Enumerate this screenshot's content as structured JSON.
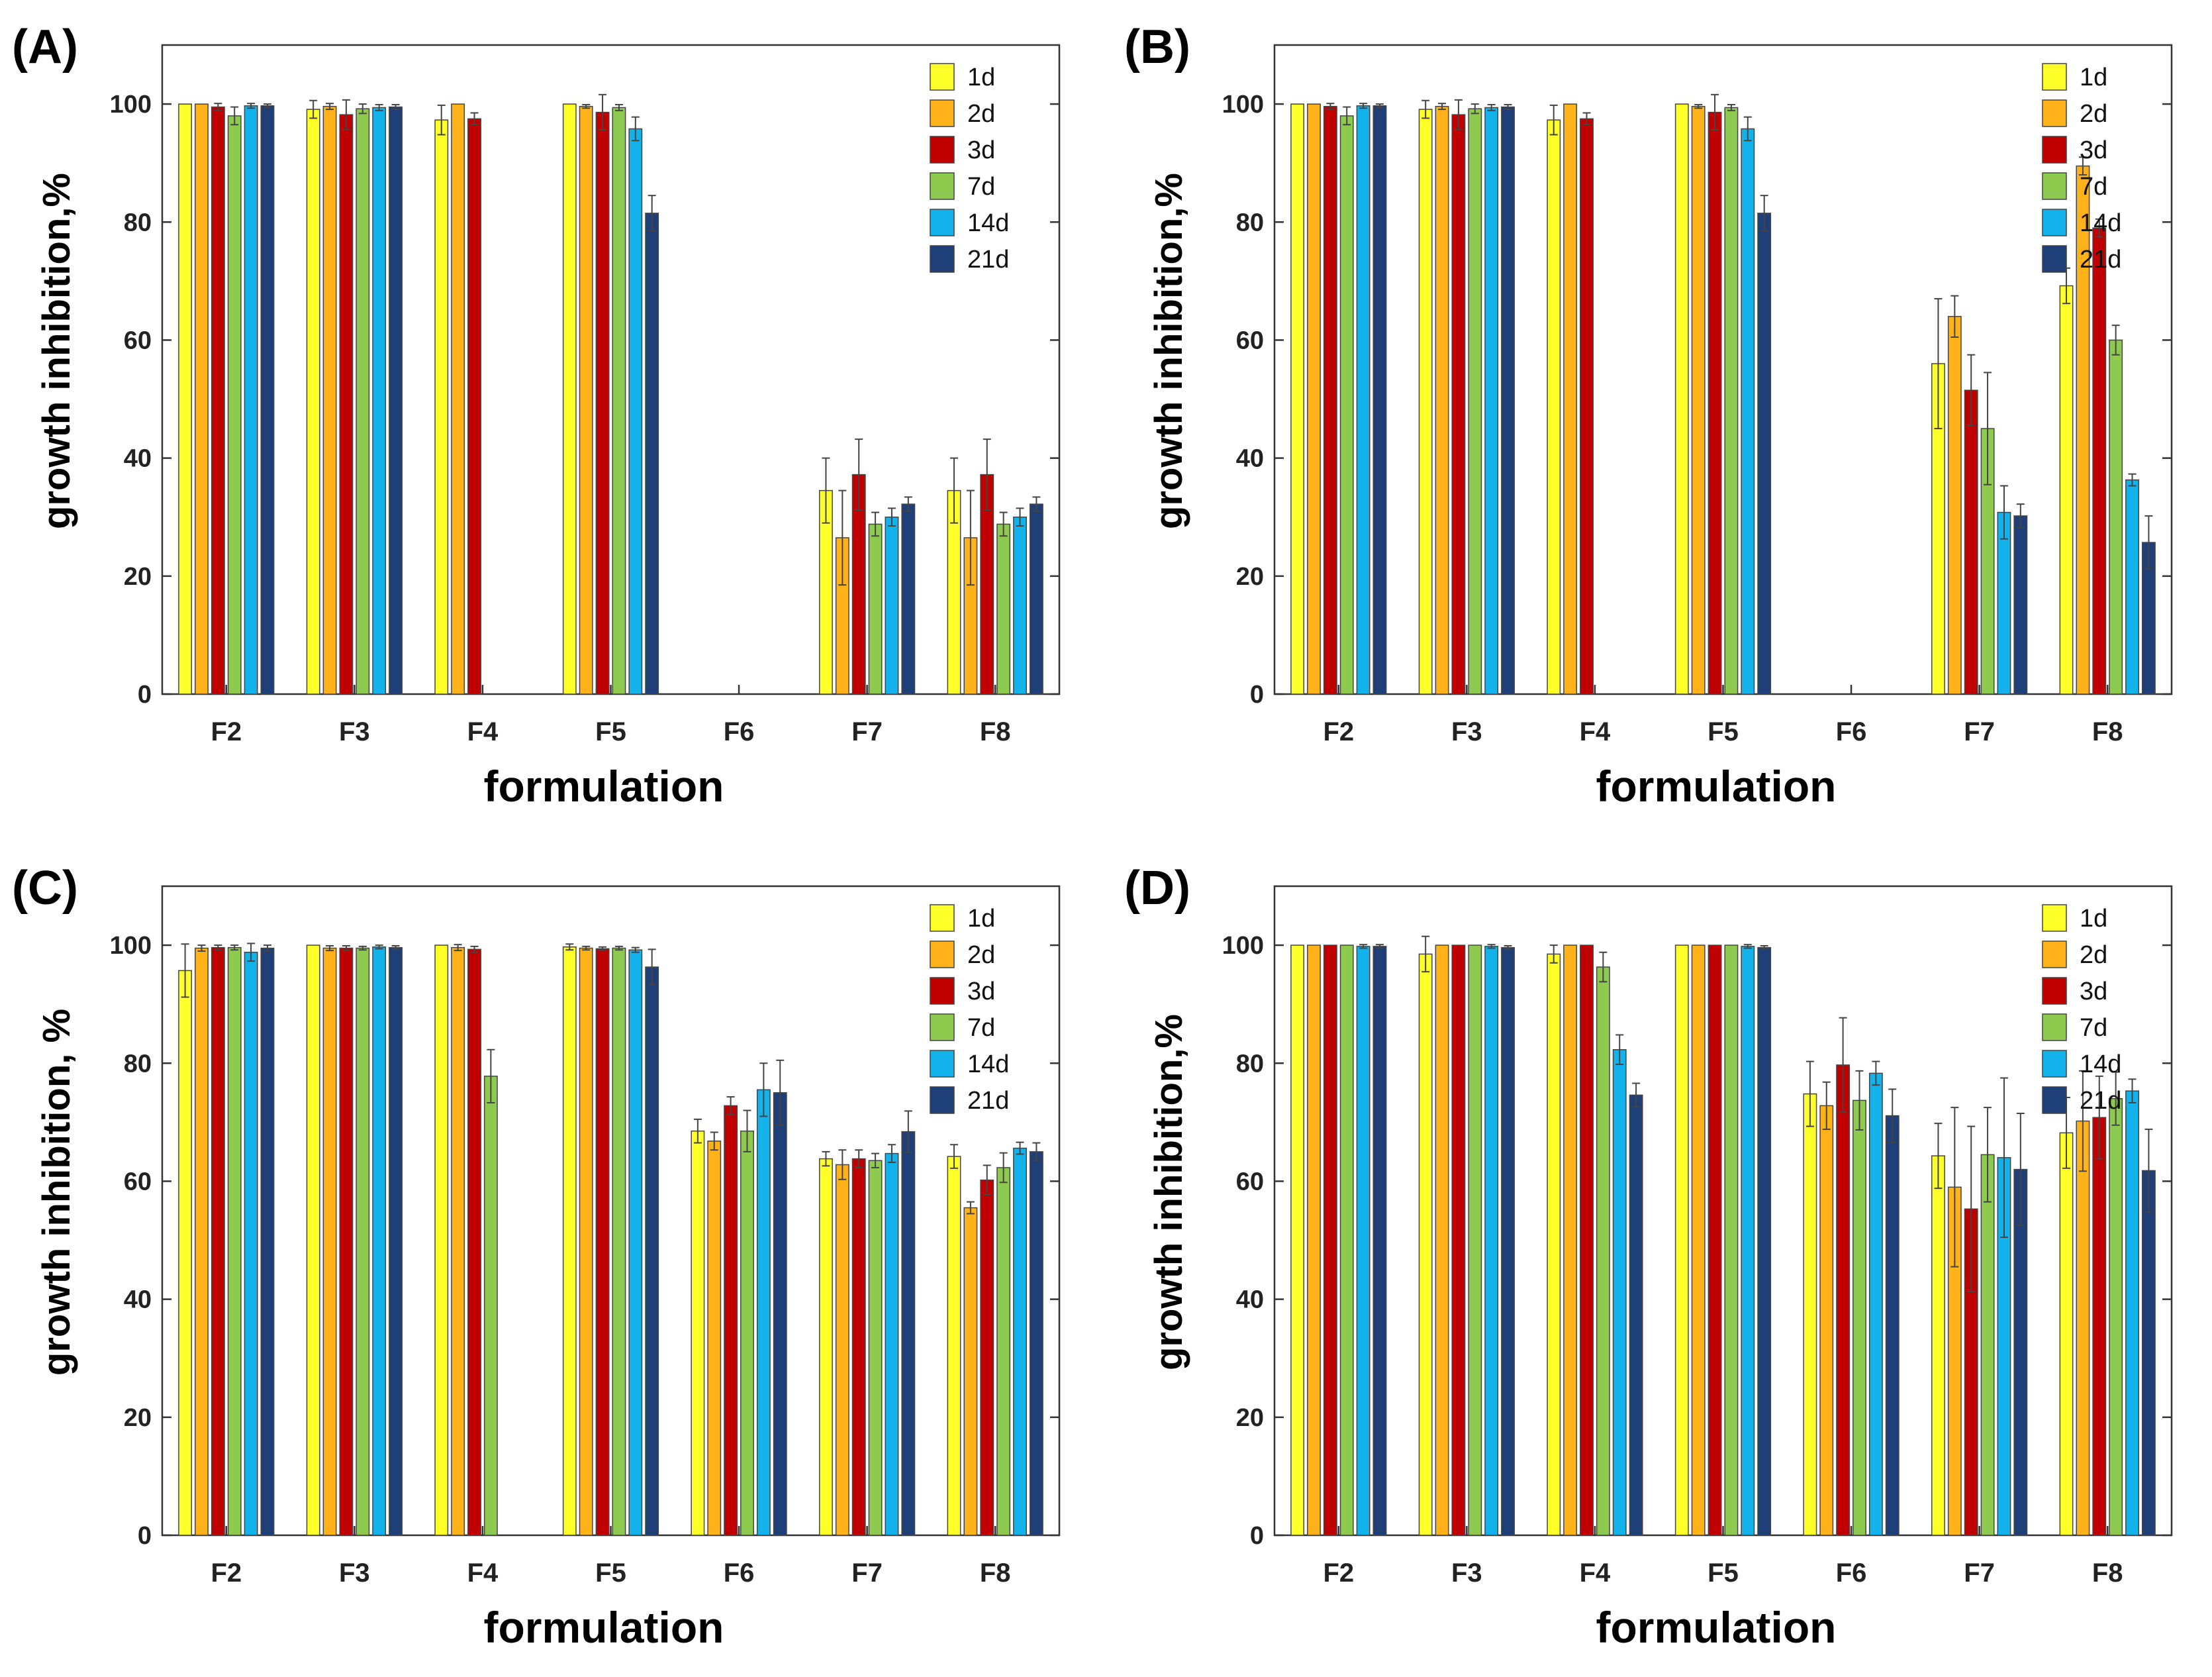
{
  "legend": [
    "1d",
    "2d",
    "3d",
    "7d",
    "14d",
    "21d"
  ],
  "colors": [
    "#ffff2a",
    "#ffb219",
    "#c00000",
    "#8fca50",
    "#14b2ea",
    "#1e3f78"
  ],
  "chart_data": [
    {
      "panel": "(A)",
      "type": "bar",
      "xlabel": "formulation",
      "ylabel": "growth inhibition,%",
      "ylim": [
        0,
        110
      ],
      "yticks": [
        0,
        20,
        40,
        60,
        80,
        100
      ],
      "legend_position": "top-right",
      "categories": [
        "F2",
        "F3",
        "F4",
        "F5",
        "F6",
        "F7",
        "F8"
      ],
      "series": [
        {
          "name": "1d",
          "values": [
            100,
            99.1,
            97.3,
            100,
            null,
            34.5,
            34.5
          ],
          "errors": [
            0,
            1.5,
            2.5,
            0,
            null,
            5.5,
            5.5
          ]
        },
        {
          "name": "2d",
          "values": [
            100,
            99.6,
            100,
            99.6,
            null,
            26.5,
            26.5
          ],
          "errors": [
            0,
            0.5,
            0,
            0.3,
            null,
            8,
            8
          ]
        },
        {
          "name": "3d",
          "values": [
            99.5,
            98.2,
            97.5,
            98.6,
            null,
            37.2,
            37.2
          ],
          "errors": [
            0.6,
            2.5,
            1,
            3,
            null,
            6,
            6
          ]
        },
        {
          "name": "7d",
          "values": [
            98,
            99.2,
            null,
            99.4,
            null,
            28.8,
            28.8
          ],
          "errors": [
            1.5,
            0.8,
            null,
            0.5,
            null,
            2,
            2
          ]
        },
        {
          "name": "14d",
          "values": [
            99.7,
            99.4,
            null,
            95.8,
            null,
            30,
            30
          ],
          "errors": [
            0.4,
            0.5,
            null,
            2,
            null,
            1.5,
            1.5
          ]
        },
        {
          "name": "21d",
          "values": [
            99.7,
            99.5,
            null,
            81.5,
            null,
            32.2,
            32.2
          ],
          "errors": [
            0.3,
            0.4,
            null,
            3,
            null,
            1.2,
            1.2
          ]
        }
      ]
    },
    {
      "panel": "(B)",
      "type": "bar",
      "xlabel": "formulation",
      "ylabel": "growth inhibition,%",
      "ylim": [
        0,
        110
      ],
      "yticks": [
        0,
        20,
        40,
        60,
        80,
        100
      ],
      "legend_position": "top-right",
      "categories": [
        "F2",
        "F3",
        "F4",
        "F5",
        "F6",
        "F7",
        "F8"
      ],
      "series": [
        {
          "name": "1d",
          "values": [
            100,
            99.1,
            97.3,
            100,
            null,
            56,
            69.2
          ],
          "errors": [
            0,
            1.5,
            2.5,
            0,
            null,
            11,
            3
          ]
        },
        {
          "name": "2d",
          "values": [
            100,
            99.6,
            100,
            99.6,
            null,
            64,
            89.5
          ],
          "errors": [
            0,
            0.5,
            0,
            0.3,
            null,
            3.5,
            1.5
          ]
        },
        {
          "name": "3d",
          "values": [
            99.6,
            98.2,
            97.5,
            98.6,
            null,
            51.5,
            79
          ],
          "errors": [
            0.5,
            2.5,
            1,
            3,
            null,
            6,
            1.5
          ]
        },
        {
          "name": "7d",
          "values": [
            98,
            99.2,
            null,
            99.4,
            null,
            45,
            60
          ],
          "errors": [
            1.5,
            0.8,
            null,
            0.5,
            null,
            9.5,
            2.5
          ]
        },
        {
          "name": "14d",
          "values": [
            99.7,
            99.4,
            null,
            95.8,
            null,
            30.8,
            36.3
          ],
          "errors": [
            0.4,
            0.5,
            null,
            2,
            null,
            4.5,
            1
          ]
        },
        {
          "name": "21d",
          "values": [
            99.7,
            99.5,
            null,
            81.5,
            null,
            30.2,
            25.7
          ],
          "errors": [
            0.3,
            0.4,
            null,
            3,
            null,
            2,
            4.5
          ]
        }
      ]
    },
    {
      "panel": "(C)",
      "type": "bar",
      "xlabel": "formulation",
      "ylabel": "growth inhibition, %",
      "ylim": [
        0,
        110
      ],
      "yticks": [
        0,
        20,
        40,
        60,
        80,
        100
      ],
      "legend_position": "top-right",
      "categories": [
        "F2",
        "F3",
        "F4",
        "F5",
        "F6",
        "F7",
        "F8"
      ],
      "series": [
        {
          "name": "1d",
          "values": [
            95.7,
            100,
            100,
            99.7,
            68.5,
            63.8,
            64.2
          ],
          "errors": [
            4.5,
            0,
            0,
            0.5,
            2,
            1.2,
            2
          ]
        },
        {
          "name": "2d",
          "values": [
            99.5,
            99.5,
            99.6,
            99.5,
            66.8,
            62.8,
            55.5
          ],
          "errors": [
            0.5,
            0.4,
            0.5,
            0.3,
            1.5,
            2.5,
            1
          ]
        },
        {
          "name": "3d",
          "values": [
            99.6,
            99.5,
            99.3,
            99.4,
            72.8,
            63.8,
            60.2
          ],
          "errors": [
            0.4,
            0.4,
            0.5,
            0.3,
            1.5,
            1.5,
            2.5
          ]
        },
        {
          "name": "7d",
          "values": [
            99.6,
            99.5,
            77.8,
            99.5,
            68.5,
            63.5,
            62.3
          ],
          "errors": [
            0.4,
            0.3,
            4.5,
            0.3,
            3.5,
            1.2,
            2.5
          ]
        },
        {
          "name": "14d",
          "values": [
            98.8,
            99.7,
            null,
            99.2,
            75.5,
            64.7,
            65.6
          ],
          "errors": [
            1.5,
            0.3,
            null,
            0.4,
            4.5,
            1.5,
            1
          ]
        },
        {
          "name": "21d",
          "values": [
            99.5,
            99.6,
            null,
            96.3,
            75,
            68.4,
            65
          ],
          "errors": [
            0.5,
            0.3,
            null,
            3,
            5.5,
            3.5,
            1.5
          ]
        }
      ]
    },
    {
      "panel": "(D)",
      "type": "bar",
      "xlabel": "formulation",
      "ylabel": "growth inhibition,%",
      "ylim": [
        0,
        110
      ],
      "yticks": [
        0,
        20,
        40,
        60,
        80,
        100
      ],
      "legend_position": "top-right",
      "categories": [
        "F2",
        "F3",
        "F4",
        "F5",
        "F6",
        "F7",
        "F8"
      ],
      "series": [
        {
          "name": "1d",
          "values": [
            100,
            98.5,
            98.5,
            100,
            74.8,
            64.3,
            68.2
          ],
          "errors": [
            0,
            3,
            1.5,
            0,
            5.5,
            5.5,
            6
          ]
        },
        {
          "name": "2d",
          "values": [
            100,
            100,
            100,
            100,
            72.8,
            59,
            70.2
          ],
          "errors": [
            0,
            0,
            0,
            0,
            4,
            13.5,
            8.5
          ]
        },
        {
          "name": "3d",
          "values": [
            100,
            100,
            100,
            100,
            79.7,
            55.3,
            70.8
          ],
          "errors": [
            0,
            0,
            0,
            0,
            8,
            14,
            7
          ]
        },
        {
          "name": "7d",
          "values": [
            100,
            100,
            96.3,
            100,
            73.7,
            64.5,
            74
          ],
          "errors": [
            0,
            0,
            2.5,
            0,
            5,
            8,
            4.5
          ]
        },
        {
          "name": "14d",
          "values": [
            99.8,
            99.8,
            82.3,
            99.8,
            78.3,
            64,
            75.3
          ],
          "errors": [
            0.3,
            0.3,
            2.5,
            0.3,
            2,
            13.5,
            2
          ]
        },
        {
          "name": "21d",
          "values": [
            99.8,
            99.6,
            74.6,
            99.6,
            71.1,
            62,
            61.8
          ],
          "errors": [
            0.3,
            0.3,
            2,
            0.3,
            4.5,
            9.5,
            7
          ]
        }
      ]
    }
  ]
}
